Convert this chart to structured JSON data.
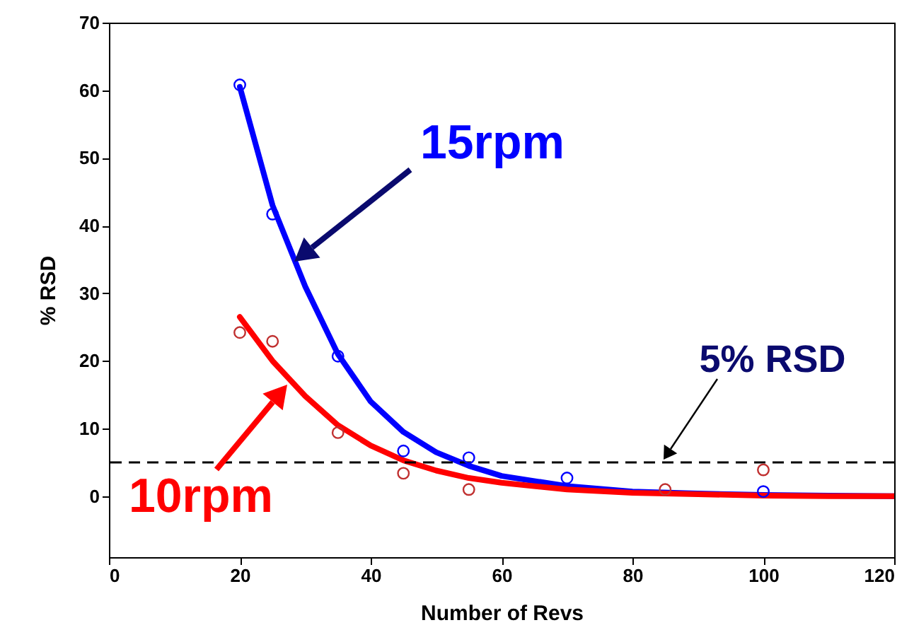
{
  "chart_data": {
    "type": "line",
    "xlabel": "Number of Revs",
    "ylabel": "% RSD",
    "xlim": [
      0,
      120
    ],
    "xticks": [
      0,
      20,
      40,
      60,
      80,
      100,
      120
    ],
    "ylim": [
      -9,
      70
    ],
    "yticks": [
      0,
      10,
      20,
      30,
      40,
      50,
      60,
      70
    ],
    "grid": false,
    "series": [
      {
        "name": "15rpm",
        "color": "#0000ff",
        "x": [
          20,
          25,
          30,
          35,
          40,
          45,
          50,
          55,
          60,
          70,
          80,
          90,
          100,
          110,
          120
        ],
        "values": [
          60.5,
          43,
          31,
          21,
          14,
          9.5,
          6.5,
          4.5,
          3,
          1.5,
          0.7,
          0.4,
          0.2,
          0.1,
          0
        ]
      },
      {
        "type": "scatter",
        "marker": "circle",
        "color": "#0000ff",
        "x": [
          20,
          25,
          35,
          45,
          55,
          70,
          100
        ],
        "values": [
          60.8,
          41.7,
          20.7,
          6.7,
          5.7,
          2.7,
          0.7
        ]
      },
      {
        "name": "10rpm",
        "color": "#ff0000",
        "x": [
          20,
          25,
          30,
          35,
          40,
          45,
          50,
          55,
          60,
          70,
          80,
          90,
          100,
          110,
          120
        ],
        "values": [
          26.5,
          20,
          14.8,
          10.5,
          7.5,
          5.3,
          3.8,
          2.7,
          2,
          1,
          0.5,
          0.3,
          0.1,
          0,
          0
        ]
      },
      {
        "type": "scatter",
        "marker": "circle",
        "color": "#c03030",
        "x": [
          20,
          25,
          35,
          45,
          55,
          85,
          100
        ],
        "values": [
          24.2,
          22.9,
          9.4,
          3.4,
          1.0,
          1.0,
          3.9
        ]
      }
    ],
    "ref_lines": [
      {
        "axis": "y",
        "value": 5,
        "label": "5% RSD",
        "color": "#000000",
        "line_style": "dashed"
      }
    ]
  }
}
